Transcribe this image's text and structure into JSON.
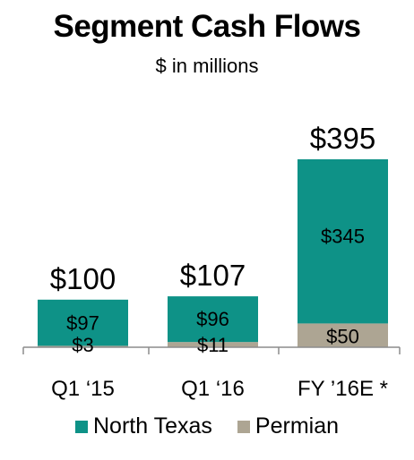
{
  "chart_data": {
    "type": "bar",
    "stacked": true,
    "title": "Segment Cash Flows",
    "subtitle": "$ in millions",
    "categories": [
      "Q1 ‘15",
      "Q1 ‘16",
      "FY ’16E *"
    ],
    "series": [
      {
        "name": "Permian",
        "color": "#ada593",
        "values": [
          3,
          11,
          50
        ],
        "labels": [
          "$3",
          "$11",
          "$50"
        ]
      },
      {
        "name": "North Texas",
        "color": "#0e9287",
        "values": [
          97,
          96,
          345
        ],
        "labels": [
          "$97",
          "$96",
          "$345"
        ]
      }
    ],
    "totals": [
      100,
      107,
      395
    ],
    "total_labels": [
      "$100",
      "$107",
      "$395"
    ],
    "ylim": [
      0,
      395
    ],
    "grid": false,
    "legend_position": "bottom",
    "legend_order": [
      "North Texas",
      "Permian"
    ]
  }
}
